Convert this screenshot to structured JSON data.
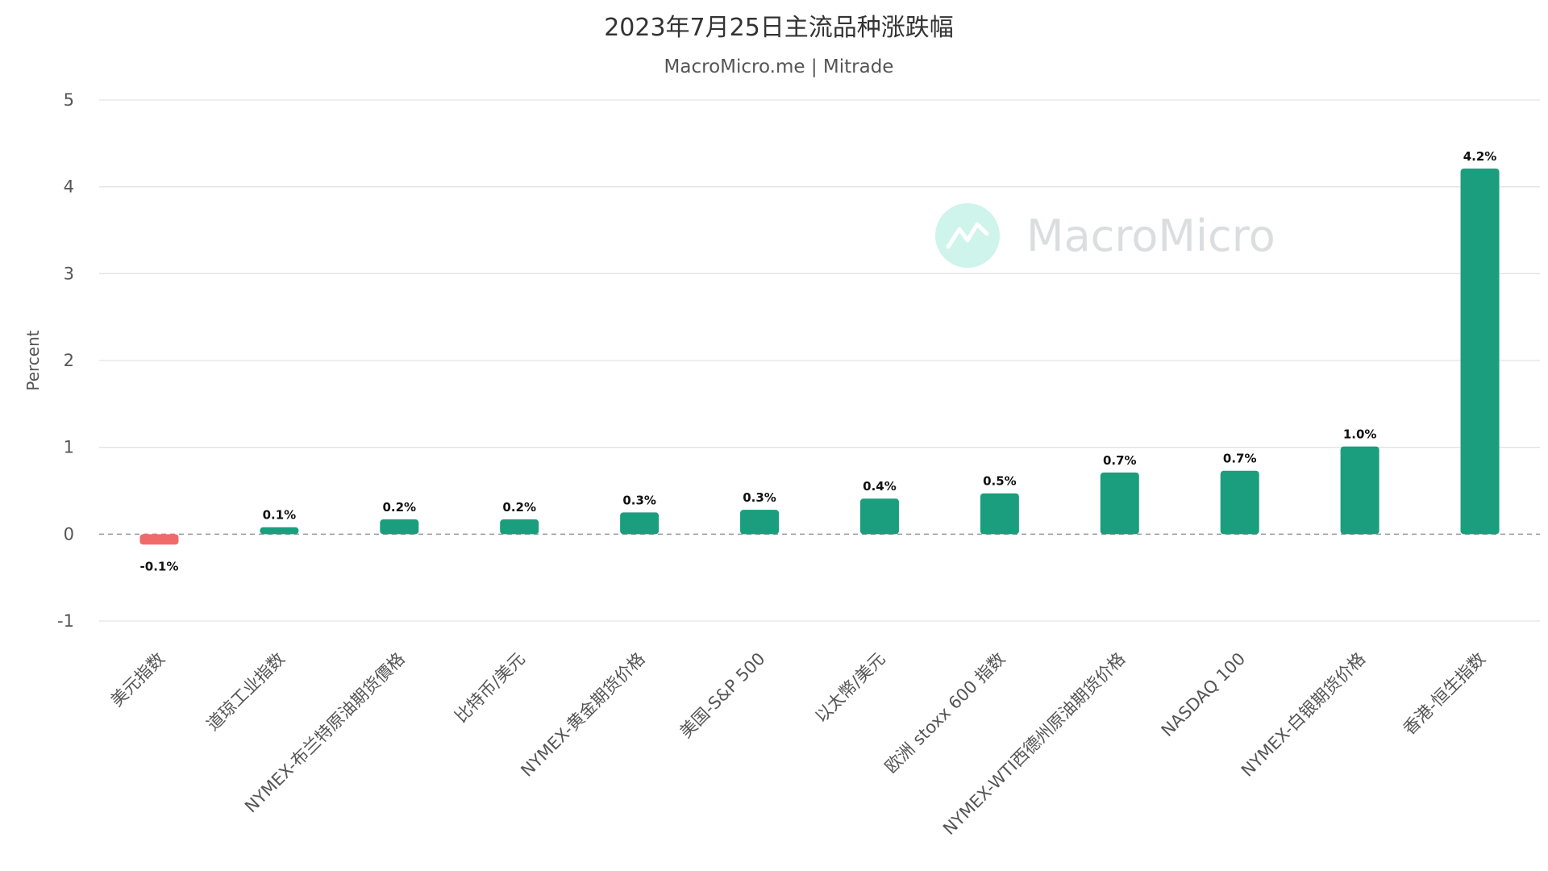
{
  "header": {
    "title": "2023年7月25日主流品种涨跌幅",
    "subtitle": "MacroMicro.me | Mitrade"
  },
  "watermark": {
    "text": "MacroMicro",
    "icon": "chart-line-icon",
    "color": "#9ee8db"
  },
  "colors": {
    "positive": "#1a9e7e",
    "negative": "#f06a6a"
  },
  "chart_data": {
    "type": "bar",
    "title": "2023年7月25日主流品种涨跌幅",
    "subtitle": "MacroMicro.me | Mitrade",
    "xlabel": "",
    "ylabel": "Percent",
    "ylim": [
      -1,
      5
    ],
    "yticks": [
      5,
      4,
      3,
      2,
      1,
      0,
      -1
    ],
    "grid": true,
    "categories": [
      "美元指数",
      "道琼工业指数",
      "NYMEX-布兰特原油期货價格",
      "比特币/美元",
      "NYMEX-黄金期货价格",
      "美国-S&P 500",
      "以太幣/美元",
      "欧洲 stoxx 600 指数",
      "NYMEX-WTI西德州原油期货价格",
      "NASDAQ 100",
      "NYMEX-白银期货价格",
      "香港-恒生指数"
    ],
    "values": [
      -0.12,
      0.08,
      0.17,
      0.17,
      0.25,
      0.28,
      0.41,
      0.47,
      0.71,
      0.73,
      1.01,
      4.21
    ],
    "data_labels": [
      "-0.1%",
      "0.1%",
      "0.2%",
      "0.2%",
      "0.3%",
      "0.3%",
      "0.4%",
      "0.5%",
      "0.7%",
      "0.7%",
      "1.0%",
      "4.2%"
    ]
  }
}
